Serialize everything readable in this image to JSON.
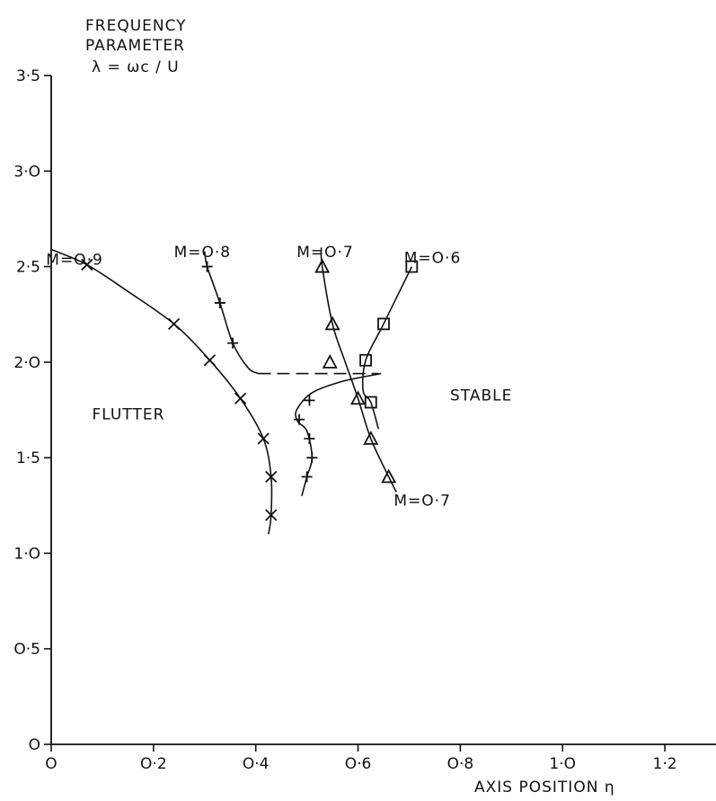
{
  "chart_data": {
    "type": "scatter",
    "ylabel_lines": [
      "FREQUENCY",
      "PARAMETER",
      "λ = ωc / U"
    ],
    "xlabel": "AXIS POSITION η",
    "xlim": [
      0,
      1.3
    ],
    "ylim": [
      0,
      3.5
    ],
    "x_ticks": [
      {
        "value": 0,
        "label": "O"
      },
      {
        "value": 0.2,
        "label": "O·2"
      },
      {
        "value": 0.4,
        "label": "O·4"
      },
      {
        "value": 0.6,
        "label": "O·6"
      },
      {
        "value": 0.8,
        "label": "O·8"
      },
      {
        "value": 1.0,
        "label": "1·O"
      },
      {
        "value": 1.2,
        "label": "1·2"
      }
    ],
    "y_ticks": [
      {
        "value": 0,
        "label": "O"
      },
      {
        "value": 0.5,
        "label": "O·5"
      },
      {
        "value": 1.0,
        "label": "1·O"
      },
      {
        "value": 1.5,
        "label": "1·5"
      },
      {
        "value": 2.0,
        "label": "2·O"
      },
      {
        "value": 2.5,
        "label": "2·5"
      },
      {
        "value": 3.0,
        "label": "3·O"
      },
      {
        "value": 3.5,
        "label": "3·5"
      }
    ],
    "grid": false,
    "series": [
      {
        "name": "M=O·9",
        "marker": "x",
        "points": [
          [
            0.07,
            2.51
          ],
          [
            0.24,
            2.2
          ],
          [
            0.31,
            2.01
          ],
          [
            0.37,
            1.81
          ],
          [
            0.415,
            1.6
          ],
          [
            0.43,
            1.4
          ],
          [
            0.43,
            1.2
          ]
        ],
        "curve": [
          [
            0.0,
            2.59
          ],
          [
            0.07,
            2.51
          ],
          [
            0.15,
            2.37
          ],
          [
            0.24,
            2.2
          ],
          [
            0.31,
            2.01
          ],
          [
            0.37,
            1.81
          ],
          [
            0.415,
            1.6
          ],
          [
            0.43,
            1.4
          ],
          [
            0.43,
            1.2
          ],
          [
            0.425,
            1.1
          ]
        ]
      },
      {
        "name": "M=O·8",
        "marker": "+",
        "points": [
          [
            0.305,
            2.5
          ],
          [
            0.33,
            2.31
          ],
          [
            0.355,
            2.1
          ],
          [
            0.505,
            1.8
          ],
          [
            0.485,
            1.7
          ],
          [
            0.505,
            1.6
          ],
          [
            0.51,
            1.5
          ],
          [
            0.5,
            1.4
          ]
        ],
        "curve": [
          [
            0.3,
            2.58
          ],
          [
            0.305,
            2.5
          ],
          [
            0.33,
            2.31
          ],
          [
            0.355,
            2.1
          ],
          [
            0.385,
            1.97
          ],
          [
            0.405,
            1.94
          ]
        ],
        "dashed": [
          [
            0.405,
            1.94
          ],
          [
            0.64,
            1.94
          ]
        ],
        "loop": [
          [
            0.645,
            1.94
          ],
          [
            0.57,
            1.9
          ],
          [
            0.51,
            1.84
          ],
          [
            0.48,
            1.75
          ],
          [
            0.482,
            1.69
          ],
          [
            0.5,
            1.64
          ],
          [
            0.51,
            1.5
          ],
          [
            0.5,
            1.4
          ],
          [
            0.49,
            1.3
          ]
        ]
      },
      {
        "name": "M=O·7",
        "marker": "triangle",
        "points": [
          [
            0.53,
            2.5
          ],
          [
            0.55,
            2.2
          ],
          [
            0.545,
            2.0
          ],
          [
            0.6,
            1.81
          ],
          [
            0.625,
            1.6
          ],
          [
            0.66,
            1.4
          ]
        ],
        "curve": [
          [
            0.528,
            2.6
          ],
          [
            0.53,
            2.5
          ],
          [
            0.55,
            2.2
          ],
          [
            0.575,
            2.0
          ],
          [
            0.6,
            1.81
          ],
          [
            0.625,
            1.6
          ],
          [
            0.66,
            1.4
          ],
          [
            0.675,
            1.32
          ]
        ]
      },
      {
        "name": "M=O·6",
        "marker": "square",
        "points": [
          [
            0.705,
            2.5
          ],
          [
            0.65,
            2.2
          ],
          [
            0.615,
            2.01
          ],
          [
            0.625,
            1.79
          ]
        ],
        "curve": [
          [
            0.705,
            2.5
          ],
          [
            0.65,
            2.2
          ],
          [
            0.615,
            2.01
          ],
          [
            0.61,
            1.85
          ],
          [
            0.625,
            1.79
          ],
          [
            0.64,
            1.65
          ]
        ]
      }
    ],
    "annotations": [
      {
        "text": "M=O·9",
        "x": -0.01,
        "y": 2.51
      },
      {
        "text": "M=O·8",
        "x": 0.24,
        "y": 2.55
      },
      {
        "text": "M=O·7",
        "x": 0.48,
        "y": 2.55
      },
      {
        "text": "M=O·6",
        "x": 0.69,
        "y": 2.52
      },
      {
        "text": "M=O·7",
        "x": 0.67,
        "y": 1.25
      },
      {
        "text": "FLUTTER",
        "x": 0.08,
        "y": 1.7
      },
      {
        "text": "STABLE",
        "x": 0.78,
        "y": 1.8
      }
    ]
  }
}
